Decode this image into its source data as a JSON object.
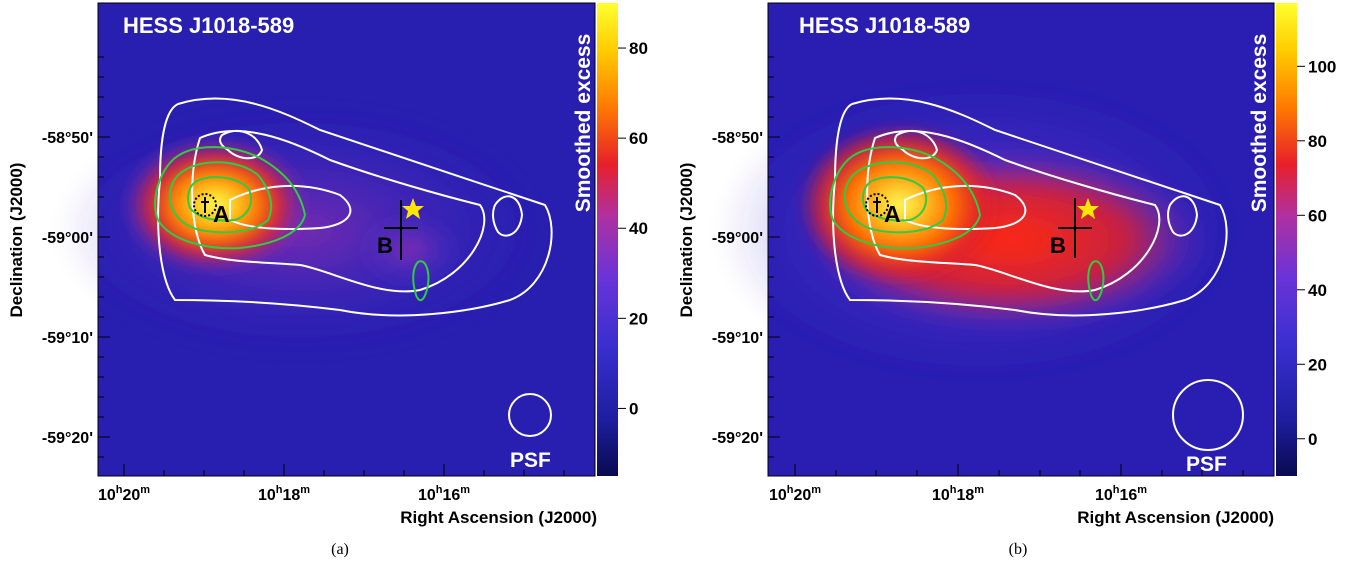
{
  "panels": [
    {
      "id": "a",
      "title": "HESS J1018-589",
      "caption": "(a)",
      "colorbar_title": "Smoothed excess",
      "colorbar_ticks": [
        "80",
        "60",
        "40",
        "20",
        "0"
      ],
      "colorbar_tick_values": [
        80,
        60,
        40,
        20,
        0
      ],
      "colorbar_range": [
        -15,
        90
      ],
      "xlabel": "Right Ascension (J2000)",
      "ylabel": "Declination (J2000)",
      "x_ticks": [
        {
          "h": "10",
          "m": "20"
        },
        {
          "h": "10",
          "m": "18"
        },
        {
          "h": "10",
          "m": "16"
        }
      ],
      "y_ticks": [
        "-58°50'",
        "-59°00'",
        "-59°10'",
        "-59°20'"
      ],
      "source_labels": {
        "a": "A",
        "b": "B"
      },
      "psf_label": "PSF"
    },
    {
      "id": "b",
      "title": "HESS J1018-589",
      "caption": "(b)",
      "colorbar_title": "Smoothed excess",
      "colorbar_ticks": [
        "100",
        "80",
        "60",
        "40",
        "20",
        "0"
      ],
      "colorbar_tick_values": [
        100,
        80,
        60,
        40,
        20,
        0
      ],
      "colorbar_range": [
        -10,
        117
      ],
      "xlabel": "Right Ascension (J2000)",
      "ylabel": "Declination (J2000)",
      "x_ticks": [
        {
          "h": "10",
          "m": "20"
        },
        {
          "h": "10",
          "m": "18"
        },
        {
          "h": "10",
          "m": "16"
        }
      ],
      "y_ticks": [
        "-58°50'",
        "-59°00'",
        "-59°10'",
        "-59°20'"
      ],
      "source_labels": {
        "a": "A",
        "b": "B"
      },
      "psf_label": "PSF"
    }
  ],
  "colors": {
    "contour_white": "#ffffff",
    "contour_green": "#2ecc40",
    "star": "#ffe600",
    "colormap": [
      "#0a0a50",
      "#1e1ea0",
      "#3a2fd0",
      "#6a33d8",
      "#b030a0",
      "#e8202a",
      "#ff7a00",
      "#ffcc00",
      "#ffff30"
    ]
  }
}
